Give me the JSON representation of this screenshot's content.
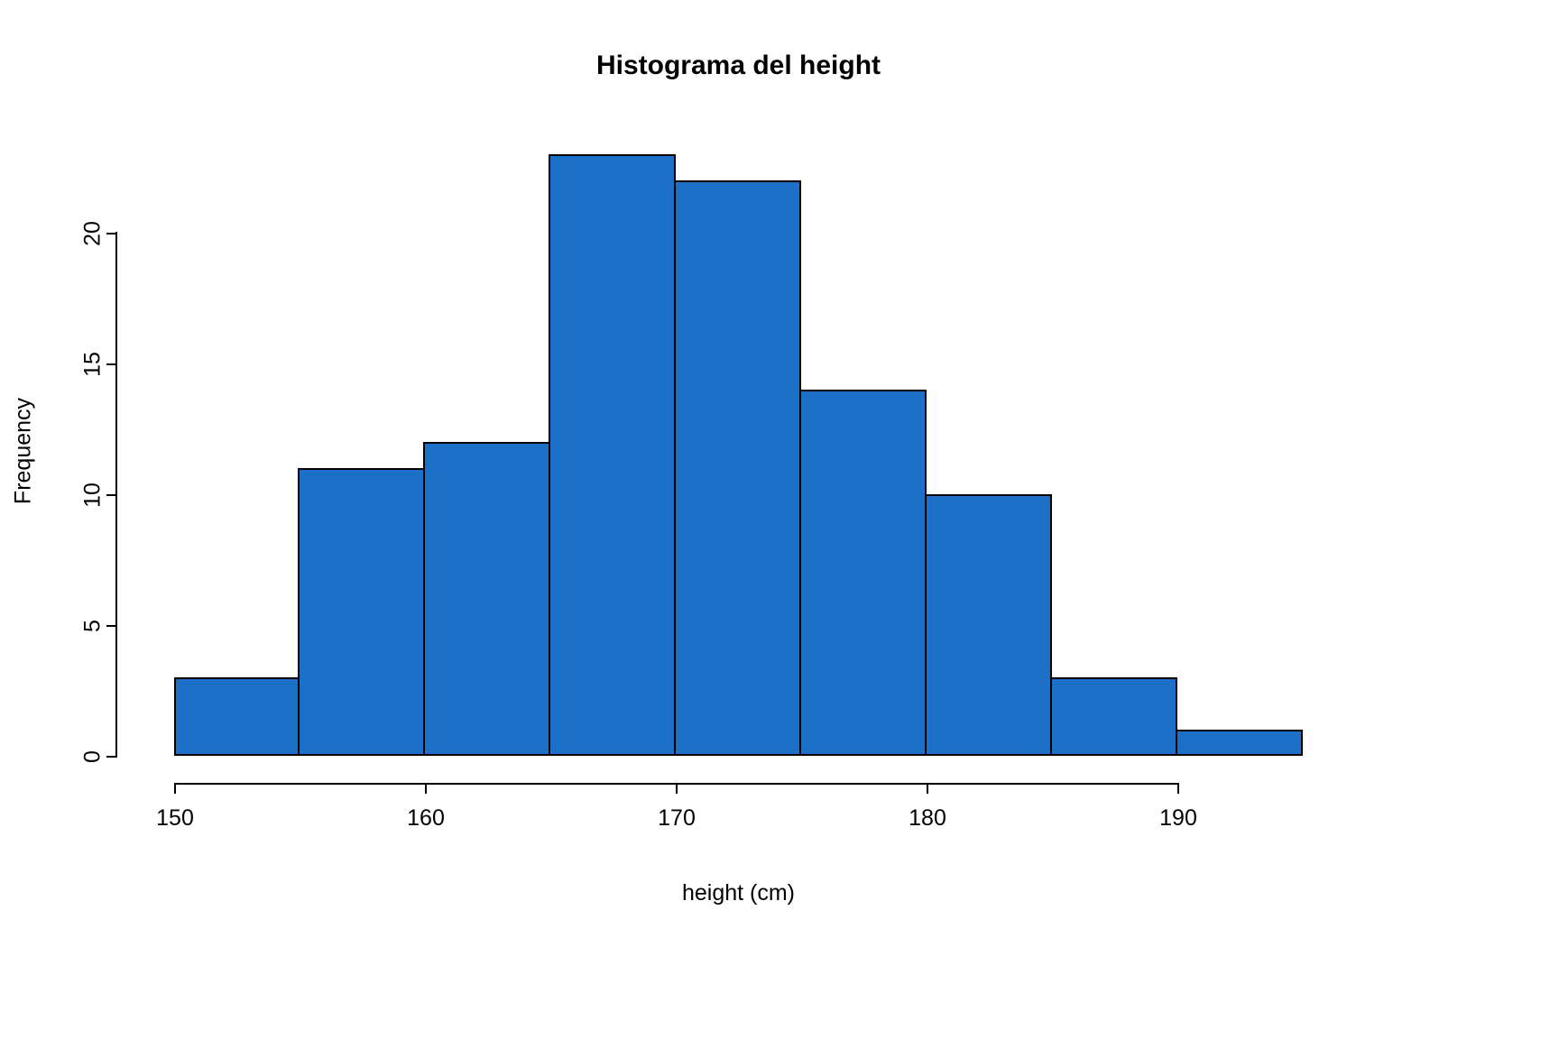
{
  "chart_data": {
    "type": "bar",
    "subtype": "histogram",
    "title": "Histograma del height",
    "xlabel": "height (cm)",
    "ylabel": "Frequency",
    "bin_edges": [
      150,
      155,
      160,
      165,
      170,
      175,
      180,
      185,
      190,
      195
    ],
    "values": [
      3,
      11,
      12,
      23,
      22,
      14,
      10,
      3,
      1
    ],
    "x_ticks": [
      150,
      160,
      170,
      180,
      190
    ],
    "y_ticks": [
      0,
      5,
      10,
      15,
      20
    ],
    "xlim": [
      150,
      195
    ],
    "ylim": [
      0,
      23
    ],
    "grid": false,
    "legend": "none",
    "bar_color": "#1C70C7",
    "bar_border": "#000000"
  }
}
